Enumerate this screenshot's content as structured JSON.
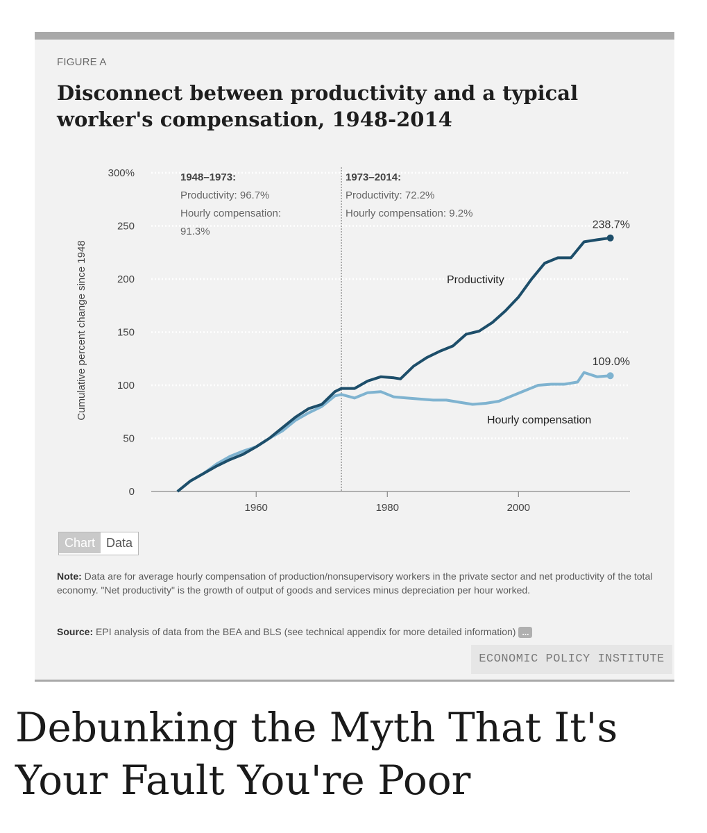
{
  "figure": {
    "label": "FIGURE A",
    "title": "Disconnect between productivity and a typical worker's compensation, 1948-2014"
  },
  "chart_data": {
    "type": "line",
    "ylabel": "Cumulative percent change since 1948",
    "xlabel": "",
    "ylim": [
      0,
      300
    ],
    "xlim": [
      1944,
      2017
    ],
    "x_ticks": [
      1960,
      1980,
      2000
    ],
    "x_tick_labels": [
      "1960",
      "1980",
      "2000"
    ],
    "y_ticks": [
      0,
      50,
      100,
      150,
      200,
      250,
      300
    ],
    "y_tick_labels": [
      "0",
      "50",
      "100",
      "150",
      "200",
      "250",
      "300%"
    ],
    "grid": "horizontal dotted",
    "divider_year": 1973,
    "annotations": {
      "left": {
        "title": "1948–1973:",
        "line1": "Productivity: 96.7%",
        "line2": "Hourly compensation:",
        "line3": "91.3%"
      },
      "right": {
        "title": "1973–2014:",
        "line1": "Productivity: 72.2%",
        "line2": "Hourly compensation: 9.2%"
      }
    },
    "series": [
      {
        "name": "Productivity",
        "color": "#1d4e6a",
        "end_label": "238.7%",
        "x": [
          1948,
          1950,
          1952,
          1954,
          1956,
          1958,
          1960,
          1962,
          1964,
          1966,
          1968,
          1970,
          1972,
          1973,
          1975,
          1977,
          1979,
          1981,
          1982,
          1984,
          1986,
          1988,
          1990,
          1992,
          1994,
          1996,
          1998,
          2000,
          2002,
          2004,
          2006,
          2008,
          2010,
          2012,
          2014
        ],
        "y": [
          0,
          10,
          17,
          24,
          30,
          35,
          42,
          50,
          60,
          70,
          78,
          82,
          94,
          97,
          97,
          104,
          108,
          107,
          106,
          118,
          126,
          132,
          137,
          148,
          151,
          159,
          170,
          183,
          200,
          215,
          220,
          220,
          235,
          237,
          238.7
        ]
      },
      {
        "name": "Hourly compensation",
        "color": "#7fb3d0",
        "end_label": "109.0%",
        "x": [
          1948,
          1950,
          1952,
          1954,
          1956,
          1958,
          1960,
          1962,
          1964,
          1966,
          1968,
          1970,
          1972,
          1973,
          1975,
          1977,
          1979,
          1981,
          1983,
          1985,
          1987,
          1989,
          1991,
          1993,
          1995,
          1997,
          1999,
          2001,
          2003,
          2005,
          2007,
          2009,
          2010,
          2012,
          2014
        ],
        "y": [
          0,
          10,
          17,
          26,
          33,
          38,
          42,
          50,
          57,
          67,
          74,
          80,
          90,
          91.3,
          88,
          93,
          94,
          89,
          88,
          87,
          86,
          86,
          84,
          82,
          83,
          85,
          90,
          95,
          100,
          101,
          101,
          103,
          112,
          108,
          109
        ]
      }
    ]
  },
  "toggle": {
    "chart": "Chart",
    "data": "Data"
  },
  "note": {
    "label": "Note:",
    "text": " Data are for average hourly compensation of production/nonsupervisory workers in the private sector and net productivity of the total economy. \"Net productivity\" is the growth of output of goods and services minus depreciation per hour worked."
  },
  "source": {
    "label": "Source:",
    "text": " EPI analysis of data from the BEA and BLS (see technical appendix for more detailed information)",
    "more": "..."
  },
  "publisher": "ECONOMIC POLICY INSTITUTE",
  "headline": "Debunking the Myth That It's Your Fault You're Poor"
}
